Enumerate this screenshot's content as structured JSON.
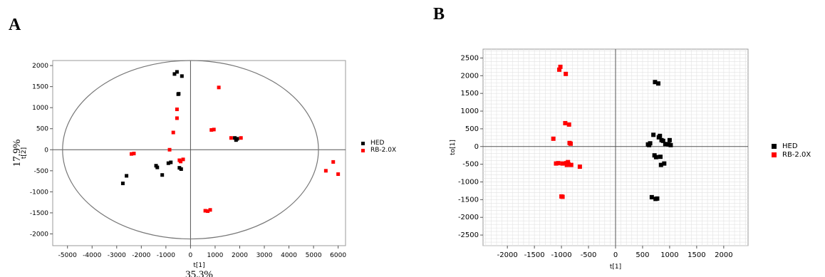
{
  "chart_data": [
    {
      "panel": "A",
      "type": "scatter",
      "xlabel": "t[1]",
      "ylabel": "t[2]",
      "x_variance_label": "35.3%",
      "y_variance_label": "17.9%",
      "xlim": [
        -5600,
        6300
      ],
      "ylim": [
        -2280,
        2120
      ],
      "xticks": [
        -5000,
        -4000,
        -3000,
        -2000,
        -1000,
        0,
        1000,
        2000,
        3000,
        4000,
        5000,
        6000
      ],
      "yticks": [
        -2000,
        -1500,
        -1000,
        -500,
        0,
        500,
        1000,
        1500,
        2000
      ],
      "grid": false,
      "hotelling_ellipse": {
        "rx": 5200,
        "ry": 2120
      },
      "legend_position": "right",
      "series": [
        {
          "name": "HED",
          "color": "#000000",
          "points": [
            [
              -2750,
              -800
            ],
            [
              -2600,
              -620
            ],
            [
              -1400,
              -380
            ],
            [
              -1350,
              -420
            ],
            [
              -1150,
              -600
            ],
            [
              -900,
              -320
            ],
            [
              -800,
              -300
            ],
            [
              -650,
              1800
            ],
            [
              -550,
              1850
            ],
            [
              -500,
              1320
            ],
            [
              -480,
              1330
            ],
            [
              -450,
              -430
            ],
            [
              -380,
              -460
            ],
            [
              -350,
              1750
            ],
            [
              1800,
              280
            ],
            [
              1850,
              230
            ],
            [
              1900,
              260
            ]
          ]
        },
        {
          "name": "RB-2.0X",
          "color": "#ff0000",
          "points": [
            [
              -2400,
              -100
            ],
            [
              -2300,
              -90
            ],
            [
              -850,
              0
            ],
            [
              -700,
              410
            ],
            [
              -550,
              960
            ],
            [
              -550,
              750
            ],
            [
              -450,
              -250
            ],
            [
              -400,
              -280
            ],
            [
              -300,
              -230
            ],
            [
              600,
              -1450
            ],
            [
              700,
              -1460
            ],
            [
              800,
              -1430
            ],
            [
              850,
              470
            ],
            [
              950,
              480
            ],
            [
              1150,
              1480
            ],
            [
              1650,
              280
            ],
            [
              2050,
              280
            ],
            [
              5500,
              -500
            ],
            [
              5800,
              -290
            ],
            [
              6000,
              -580
            ]
          ]
        }
      ]
    },
    {
      "panel": "B",
      "type": "scatter",
      "xlabel": "t[1]",
      "ylabel": "to[1]",
      "xlim": [
        -2450,
        2450
      ],
      "ylim": [
        -2800,
        2750
      ],
      "xticks": [
        -2000,
        -1500,
        -1000,
        -500,
        0,
        500,
        1000,
        1500,
        2000
      ],
      "yticks": [
        -2500,
        -2000,
        -1500,
        -1000,
        -500,
        0,
        500,
        1000,
        1500,
        2000,
        2500
      ],
      "grid": true,
      "legend_position": "right",
      "series": [
        {
          "name": "HED",
          "color": "#000000",
          "points": [
            [
              600,
              60
            ],
            [
              620,
              40
            ],
            [
              640,
              90
            ],
            [
              670,
              -1430
            ],
            [
              700,
              330
            ],
            [
              720,
              -250
            ],
            [
              730,
              1820
            ],
            [
              740,
              -1480
            ],
            [
              750,
              -300
            ],
            [
              770,
              -1470
            ],
            [
              790,
              1780
            ],
            [
              800,
              260
            ],
            [
              820,
              300
            ],
            [
              830,
              -290
            ],
            [
              840,
              -520
            ],
            [
              850,
              180
            ],
            [
              880,
              160
            ],
            [
              900,
              -480
            ],
            [
              920,
              70
            ],
            [
              980,
              60
            ],
            [
              1000,
              180
            ],
            [
              1020,
              40
            ]
          ]
        },
        {
          "name": "RB-2.0X",
          "color": "#ff0000",
          "points": [
            [
              -1150,
              220
            ],
            [
              -1100,
              -480
            ],
            [
              -1060,
              -470
            ],
            [
              -1040,
              2170
            ],
            [
              -1020,
              2250
            ],
            [
              -1000,
              -1410
            ],
            [
              -980,
              -1420
            ],
            [
              -980,
              -480
            ],
            [
              -930,
              660
            ],
            [
              -920,
              2050
            ],
            [
              -910,
              -470
            ],
            [
              -900,
              -520
            ],
            [
              -880,
              -440
            ],
            [
              -870,
              -500
            ],
            [
              -860,
              620
            ],
            [
              -850,
              100
            ],
            [
              -830,
              80
            ],
            [
              -820,
              -520
            ],
            [
              -660,
              -570
            ]
          ]
        }
      ]
    }
  ],
  "panel_labels": {
    "a": "A",
    "b": "B"
  }
}
